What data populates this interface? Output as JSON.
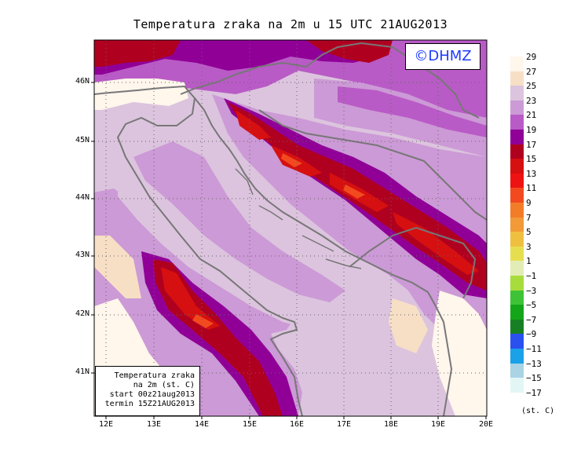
{
  "title": "Temperatura zraka na 2m u 15 UTC 21AUG2013",
  "logo": "©DHMZ",
  "lat_labels": [
    "46N",
    "45N",
    "44N",
    "43N",
    "42N",
    "41N"
  ],
  "lon_labels": [
    "12E",
    "13E",
    "14E",
    "15E",
    "16E",
    "17E",
    "18E",
    "19E",
    "20E"
  ],
  "info_box": {
    "line1": "Temperatura zraka",
    "line2": "na 2m (st. C)",
    "line3": "start 00z21aug2013",
    "line4": "termin 15Z21AUG2013"
  },
  "legend": {
    "unit": "(st. C)",
    "levels": [
      {
        "label": "29",
        "color": "#fff6ec"
      },
      {
        "label": "27",
        "color": "#f7dfc6"
      },
      {
        "label": "25",
        "color": "#dcc4de"
      },
      {
        "label": "23",
        "color": "#cc9ad6"
      },
      {
        "label": "21",
        "color": "#b95bc6"
      },
      {
        "label": "19",
        "color": "#900097"
      },
      {
        "label": "17",
        "color": "#b00020"
      },
      {
        "label": "15",
        "color": "#d61010"
      },
      {
        "label": "13",
        "color": "#ef1212"
      },
      {
        "label": "11",
        "color": "#f24a1e"
      },
      {
        "label": "9",
        "color": "#f37c28"
      },
      {
        "label": "7",
        "color": "#f19a37"
      },
      {
        "label": "5",
        "color": "#efc03f"
      },
      {
        "label": "3",
        "color": "#e7de4f"
      },
      {
        "label": "1",
        "color": "#e2edb5"
      },
      {
        "label": "−1",
        "color": "#a8dc3c"
      },
      {
        "label": "−3",
        "color": "#3ec337"
      },
      {
        "label": "−5",
        "color": "#14a61a"
      },
      {
        "label": "−7",
        "color": "#178025"
      },
      {
        "label": "−9",
        "color": "#2b50f0"
      },
      {
        "label": "−11",
        "color": "#1aa1e8"
      },
      {
        "label": "−13",
        "color": "#aad3e6"
      },
      {
        "label": "−15",
        "color": "#e2f6f6"
      },
      {
        "label": "−17",
        "color": "#ffffff"
      }
    ]
  },
  "colors": {
    "sea": "#dcc4de",
    "land_low": "#cc9ad6",
    "coastline": "#777777"
  }
}
